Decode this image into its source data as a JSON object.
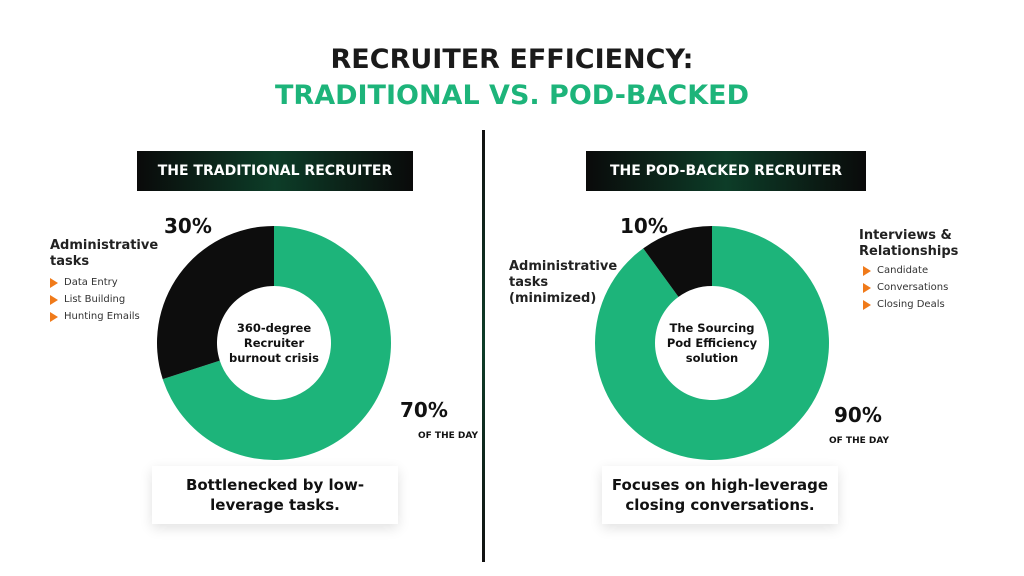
{
  "title": "RECRUITER EFFICIENCY:",
  "subtitle": "TRADITIONAL VS. POD-BACKED",
  "chart_data": [
    {
      "type": "pie",
      "donut": true,
      "title": "THE TRADITIONAL RECRUITER",
      "center_label": "360-degree Recruiter burnout crisis",
      "categories": [
        null,
        "Administrative tasks"
      ],
      "values": [
        70,
        30
      ],
      "value_labels": [
        "70%",
        "30%"
      ],
      "annotation": "OF THE DAY",
      "colors": [
        "#1db47a",
        "#0d0d0d"
      ],
      "bullets": [
        "Data Entry",
        "List Building",
        "Hunting Emails"
      ],
      "caption": "Bottlenecked by low-leverage tasks."
    },
    {
      "type": "pie",
      "donut": true,
      "title": "THE POD-BACKED RECRUITER",
      "center_label": "The Sourcing Pod Efficiency solution",
      "categories": [
        "Interviews & Relationships",
        "Administrative tasks (minimized)"
      ],
      "values": [
        90,
        10
      ],
      "value_labels": [
        "90%",
        "10%"
      ],
      "annotation": "OF THE DAY",
      "colors": [
        "#1db47a",
        "#0d0d0d"
      ],
      "bullets": [
        "Candidate",
        "Conversations",
        "Closing Deals"
      ],
      "caption": "Focuses on high-leverage closing conversations."
    }
  ]
}
